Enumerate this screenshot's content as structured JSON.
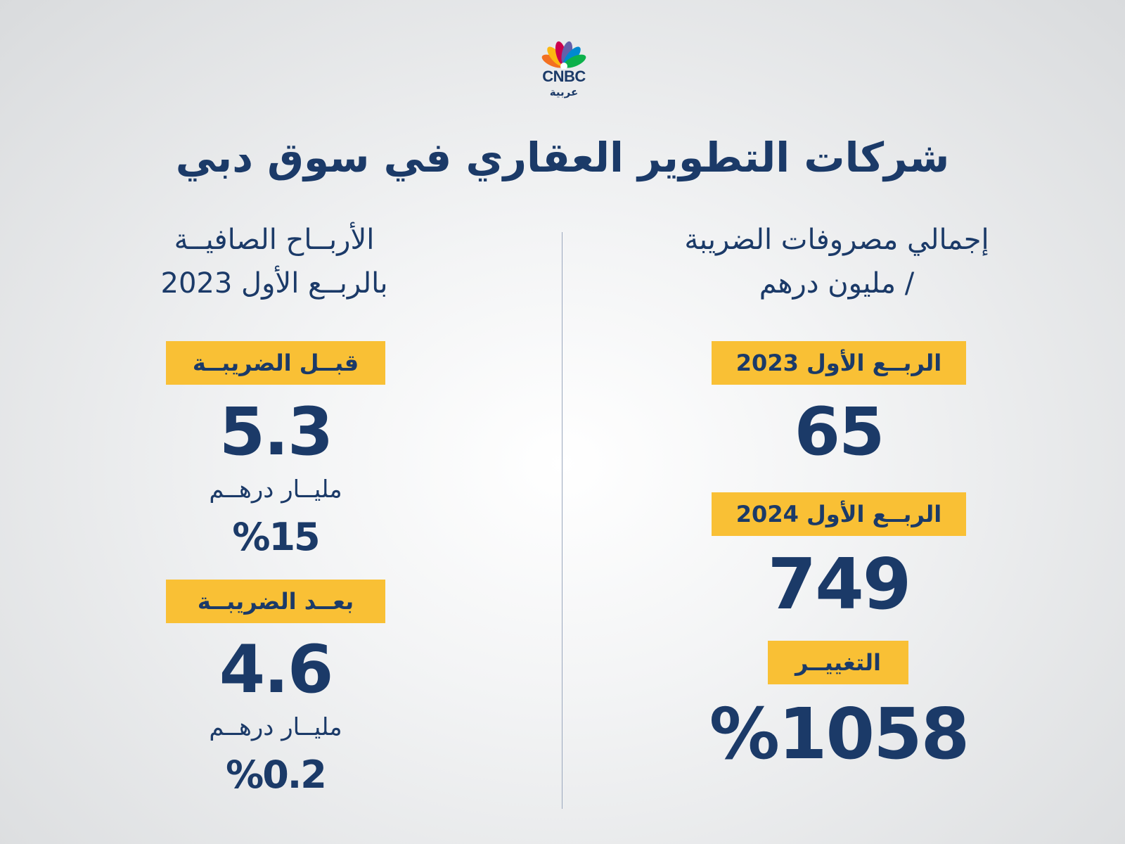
{
  "logo": {
    "latin": "CNBC",
    "arabic": "عربية"
  },
  "title": "شركات التطوير العقاري في سوق دبي",
  "right": {
    "heading_line1": "إجمالي مصروفات الضريبة",
    "heading_line2": "/ مليون درهم",
    "q1_2023_label": "الربــع الأول 2023",
    "q1_2023_value": "65",
    "q1_2024_label": "الربــع الأول 2024",
    "q1_2024_value": "749",
    "change_label": "التغييــر",
    "change_value": "%1058"
  },
  "left": {
    "heading_line1": "الأربــاح الصافيــة",
    "heading_line2": "بالربــع الأول 2023",
    "before_tax_label": "قبــل الضريبــة",
    "before_tax_value": "5.3",
    "before_tax_unit": "مليــار درهــم",
    "before_tax_pct": "%15",
    "after_tax_label": "بعــد الضريبــة",
    "after_tax_value": "4.6",
    "after_tax_unit": "مليــار درهــم",
    "after_tax_pct": "%0.2"
  },
  "colors": {
    "navy": "#1b3a68",
    "accent": "#f9c035",
    "background": "#e6e7e8"
  },
  "icons": {
    "brand": "cnbc-peacock-icon"
  }
}
